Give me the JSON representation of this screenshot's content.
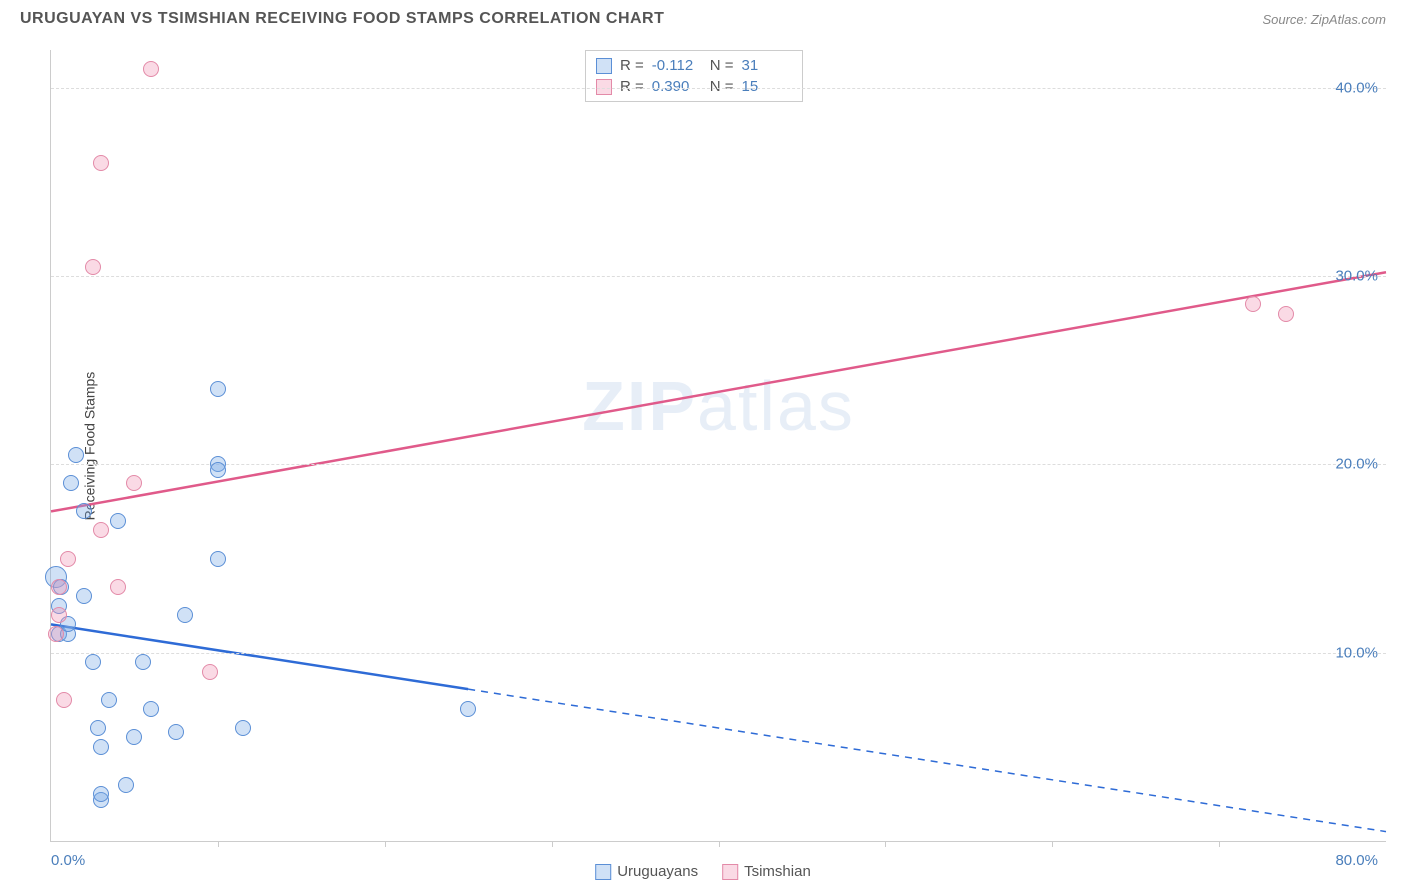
{
  "header": {
    "title": "URUGUAYAN VS TSIMSHIAN RECEIVING FOOD STAMPS CORRELATION CHART",
    "source_prefix": "Source: ",
    "source_name": "ZipAtlas.com"
  },
  "chart": {
    "type": "scatter",
    "y_axis_label": "Receiving Food Stamps",
    "x_min": 0,
    "x_max": 80,
    "y_min": 0,
    "y_max": 42,
    "x_min_label": "0.0%",
    "x_max_label": "80.0%",
    "y_ticks": [
      {
        "v": 10,
        "label": "10.0%"
      },
      {
        "v": 20,
        "label": "20.0%"
      },
      {
        "v": 30,
        "label": "30.0%"
      },
      {
        "v": 40,
        "label": "40.0%"
      }
    ],
    "x_tick_positions": [
      10,
      20,
      30,
      40,
      50,
      60,
      70
    ],
    "grid_color": "#dddddd",
    "axis_color": "#cccccc",
    "background_color": "#ffffff",
    "tick_label_color": "#4a7ebb",
    "axis_label_color": "#444444",
    "watermark_text_part1": "ZIP",
    "watermark_text_part2": "atlas",
    "series": [
      {
        "name": "Uruguayans",
        "fill": "rgba(120,170,230,0.35)",
        "stroke": "#5b8fd6",
        "marker_radius": 8,
        "trend": {
          "x1": 0,
          "y1": 11.5,
          "x2": 80,
          "y2": 0.5,
          "solid_until_x": 25,
          "color": "#2e6bd6",
          "width": 2.5
        },
        "R": "-0.112",
        "N": "31",
        "points": [
          {
            "x": 0.3,
            "y": 14,
            "r": 11
          },
          {
            "x": 0.5,
            "y": 11
          },
          {
            "x": 0.5,
            "y": 12.5
          },
          {
            "x": 0.6,
            "y": 13.5
          },
          {
            "x": 1,
            "y": 11
          },
          {
            "x": 1,
            "y": 11.5
          },
          {
            "x": 1.2,
            "y": 19
          },
          {
            "x": 1.5,
            "y": 20.5
          },
          {
            "x": 2,
            "y": 13
          },
          {
            "x": 2,
            "y": 17.5
          },
          {
            "x": 2.5,
            "y": 9.5
          },
          {
            "x": 2.8,
            "y": 6
          },
          {
            "x": 3,
            "y": 5
          },
          {
            "x": 3,
            "y": 2.2
          },
          {
            "x": 3,
            "y": 2.5
          },
          {
            "x": 3.5,
            "y": 7.5
          },
          {
            "x": 4,
            "y": 17
          },
          {
            "x": 4.5,
            "y": 3
          },
          {
            "x": 5,
            "y": 5.5
          },
          {
            "x": 5.5,
            "y": 9.5
          },
          {
            "x": 6,
            "y": 7
          },
          {
            "x": 7.5,
            "y": 5.8
          },
          {
            "x": 8,
            "y": 12
          },
          {
            "x": 10,
            "y": 15
          },
          {
            "x": 10,
            "y": 24
          },
          {
            "x": 10,
            "y": 20
          },
          {
            "x": 10,
            "y": 19.7
          },
          {
            "x": 11.5,
            "y": 6
          },
          {
            "x": 25,
            "y": 7
          }
        ]
      },
      {
        "name": "Tsimshian",
        "fill": "rgba(240,150,180,0.35)",
        "stroke": "#e38aa8",
        "marker_radius": 8,
        "trend": {
          "x1": 0,
          "y1": 17.5,
          "x2": 80,
          "y2": 30.2,
          "solid_until_x": 80,
          "color": "#e05a8a",
          "width": 2.5
        },
        "R": "0.390",
        "N": "15",
        "points": [
          {
            "x": 0.3,
            "y": 11
          },
          {
            "x": 0.5,
            "y": 12
          },
          {
            "x": 0.5,
            "y": 13.5
          },
          {
            "x": 0.8,
            "y": 7.5
          },
          {
            "x": 1,
            "y": 15
          },
          {
            "x": 2.5,
            "y": 30.5
          },
          {
            "x": 3,
            "y": 36
          },
          {
            "x": 3,
            "y": 16.5
          },
          {
            "x": 4,
            "y": 13.5
          },
          {
            "x": 5,
            "y": 19
          },
          {
            "x": 6,
            "y": 41
          },
          {
            "x": 9.5,
            "y": 9
          },
          {
            "x": 72,
            "y": 28.5
          },
          {
            "x": 74,
            "y": 28
          }
        ]
      }
    ],
    "stats_labels": {
      "R": "R =",
      "N": "N ="
    }
  },
  "legend": {
    "items": [
      {
        "label": "Uruguayans",
        "fill": "rgba(120,170,230,0.35)",
        "stroke": "#5b8fd6"
      },
      {
        "label": "Tsimshian",
        "fill": "rgba(240,150,180,0.35)",
        "stroke": "#e38aa8"
      }
    ]
  }
}
